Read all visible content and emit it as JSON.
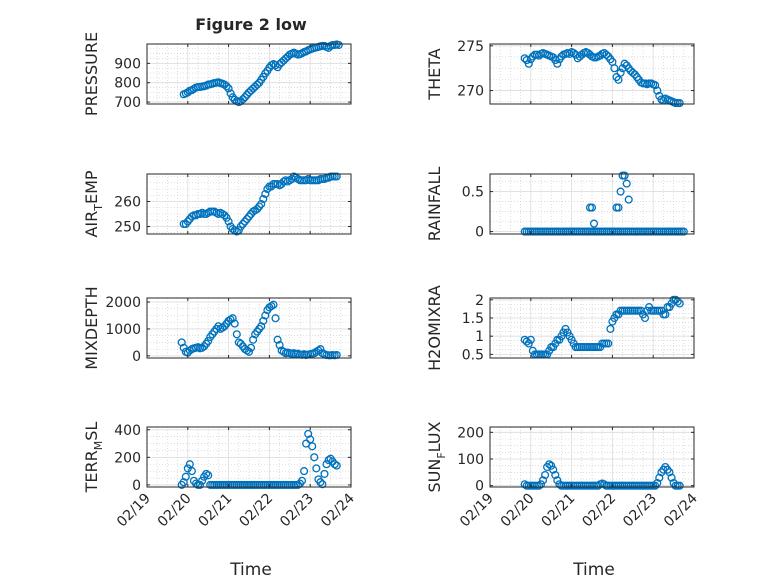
{
  "figure": {
    "title": "Figure 2 low"
  },
  "colors": {
    "marker": "#0072BD",
    "axis": "#262626",
    "grid": "#c8c8c8",
    "background": "#ffffff"
  },
  "shared_x": {
    "label": "Time",
    "ticks": [
      "02/19",
      "02/20",
      "02/21",
      "02/22",
      "02/23",
      "02/24"
    ],
    "range": [
      0,
      5
    ]
  },
  "chart_data": [
    {
      "type": "scatter",
      "id": "pressure",
      "ylabel": "PRESSURE",
      "title": "Figure 2 low",
      "xlim": [
        0,
        5
      ],
      "ylim": [
        690,
        1000
      ],
      "yticks": [
        700,
        800,
        900
      ],
      "grid": "on",
      "x": [
        0.9,
        0.95,
        1.0,
        1.05,
        1.1,
        1.15,
        1.2,
        1.25,
        1.3,
        1.35,
        1.4,
        1.45,
        1.5,
        1.55,
        1.6,
        1.65,
        1.7,
        1.75,
        1.8,
        1.85,
        1.9,
        1.95,
        2.0,
        2.05,
        2.1,
        2.15,
        2.2,
        2.25,
        2.3,
        2.35,
        2.4,
        2.45,
        2.5,
        2.55,
        2.6,
        2.65,
        2.7,
        2.75,
        2.8,
        2.85,
        2.9,
        2.95,
        3.0,
        3.05,
        3.1,
        3.15,
        3.2,
        3.25,
        3.3,
        3.35,
        3.4,
        3.45,
        3.5,
        3.55,
        3.6,
        3.65,
        3.7,
        3.75,
        3.8,
        3.85,
        3.9,
        3.95,
        4.0,
        4.05,
        4.1,
        4.15,
        4.2,
        4.25,
        4.3,
        4.35,
        4.4,
        4.45,
        4.5,
        4.55,
        4.6,
        4.65,
        4.7
      ],
      "y": [
        740,
        745,
        750,
        758,
        762,
        768,
        775,
        778,
        778,
        780,
        782,
        785,
        790,
        792,
        795,
        798,
        800,
        802,
        798,
        795,
        790,
        782,
        770,
        745,
        725,
        712,
        705,
        700,
        705,
        715,
        725,
        738,
        750,
        760,
        770,
        780,
        790,
        800,
        815,
        830,
        848,
        862,
        878,
        890,
        896,
        890,
        880,
        895,
        905,
        915,
        925,
        935,
        945,
        950,
        955,
        950,
        945,
        948,
        952,
        958,
        962,
        968,
        972,
        976,
        980,
        982,
        985,
        988,
        990,
        990,
        985,
        980,
        990,
        995,
        995,
        998,
        995
      ]
    },
    {
      "type": "scatter",
      "id": "theta",
      "ylabel": "THETA",
      "xlim": [
        0,
        5
      ],
      "ylim": [
        268.5,
        275.2
      ],
      "yticks": [
        270,
        275
      ],
      "grid": "on",
      "x": [
        0.85,
        0.9,
        0.95,
        1.0,
        1.05,
        1.1,
        1.15,
        1.2,
        1.25,
        1.3,
        1.35,
        1.4,
        1.45,
        1.5,
        1.55,
        1.6,
        1.65,
        1.7,
        1.75,
        1.8,
        1.85,
        1.9,
        1.95,
        2.0,
        2.05,
        2.1,
        2.15,
        2.2,
        2.25,
        2.3,
        2.35,
        2.4,
        2.45,
        2.5,
        2.55,
        2.6,
        2.65,
        2.7,
        2.75,
        2.8,
        2.85,
        2.9,
        2.95,
        3.0,
        3.05,
        3.1,
        3.15,
        3.2,
        3.25,
        3.3,
        3.35,
        3.4,
        3.45,
        3.5,
        3.55,
        3.6,
        3.65,
        3.7,
        3.75,
        3.8,
        3.85,
        3.9,
        3.95,
        4.0,
        4.05,
        4.1,
        4.15,
        4.2,
        4.25,
        4.3,
        4.35,
        4.4,
        4.45,
        4.5,
        4.55,
        4.6,
        4.65
      ],
      "y": [
        273.6,
        273.4,
        273.0,
        273.5,
        273.8,
        274.0,
        274.0,
        273.9,
        274.1,
        274.2,
        274.1,
        274.0,
        273.9,
        273.8,
        273.7,
        273.4,
        273.0,
        273.5,
        273.8,
        274.0,
        274.1,
        274.2,
        274.1,
        274.3,
        274.2,
        274.0,
        273.6,
        273.8,
        274.0,
        274.2,
        274.3,
        274.2,
        274.0,
        273.8,
        273.7,
        273.7,
        273.8,
        273.9,
        274.1,
        274.2,
        274.0,
        273.8,
        273.5,
        273.2,
        272.5,
        271.5,
        271.2,
        272.0,
        272.5,
        273.0,
        272.8,
        272.5,
        272.2,
        272.0,
        271.8,
        271.5,
        271.2,
        270.9,
        270.8,
        270.8,
        270.7,
        270.8,
        270.8,
        270.7,
        270.6,
        270.0,
        269.4,
        269.0,
        268.9,
        269.1,
        269.0,
        268.9,
        268.8,
        268.7,
        268.6,
        268.6,
        268.6
      ]
    },
    {
      "type": "scatter",
      "id": "air_temp",
      "ylabel": "AIR",
      "ylabel_sub": "T",
      "ylabel_rest": "EMP",
      "xlim": [
        0,
        5
      ],
      "ylim": [
        247,
        271
      ],
      "yticks": [
        250,
        260
      ],
      "grid": "on",
      "x": [
        0.9,
        0.95,
        1.0,
        1.05,
        1.1,
        1.15,
        1.2,
        1.25,
        1.3,
        1.35,
        1.4,
        1.45,
        1.5,
        1.55,
        1.6,
        1.65,
        1.7,
        1.75,
        1.8,
        1.85,
        1.9,
        1.95,
        2.0,
        2.05,
        2.1,
        2.15,
        2.2,
        2.25,
        2.3,
        2.35,
        2.4,
        2.45,
        2.5,
        2.55,
        2.6,
        2.65,
        2.7,
        2.75,
        2.8,
        2.85,
        2.9,
        2.95,
        3.0,
        3.05,
        3.1,
        3.15,
        3.2,
        3.25,
        3.3,
        3.35,
        3.4,
        3.45,
        3.5,
        3.55,
        3.6,
        3.65,
        3.7,
        3.75,
        3.8,
        3.85,
        3.9,
        3.95,
        4.0,
        4.05,
        4.1,
        4.15,
        4.2,
        4.25,
        4.3,
        4.35,
        4.4,
        4.45,
        4.5,
        4.55,
        4.6,
        4.65
      ],
      "y": [
        251,
        251,
        252,
        253,
        254,
        254.5,
        254.5,
        255,
        255,
        255.5,
        255,
        255,
        255.5,
        256,
        256,
        256,
        255.5,
        255,
        255.5,
        255,
        254.5,
        253.5,
        252,
        250,
        249,
        248.5,
        248,
        248.5,
        250,
        251,
        252,
        253,
        254,
        255,
        256,
        256.5,
        257,
        258,
        259,
        261,
        263,
        265,
        266,
        266,
        267,
        267,
        267,
        266.5,
        267,
        268,
        268.5,
        268,
        268.5,
        269,
        270,
        269.5,
        269,
        268.5,
        268.5,
        268.5,
        268.5,
        269,
        268.5,
        268.5,
        268.5,
        268.5,
        268.5,
        269,
        269,
        269,
        269.5,
        269.5,
        270,
        270,
        270,
        270
      ]
    },
    {
      "type": "scatter",
      "id": "rainfall",
      "ylabel": "RAINFALL",
      "xlim": [
        0,
        5
      ],
      "ylim": [
        -0.03,
        0.72
      ],
      "yticks": [
        0,
        0.5
      ],
      "grid": "on",
      "x": [
        0.85,
        0.9,
        0.95,
        1.0,
        1.05,
        1.1,
        1.15,
        1.2,
        1.25,
        1.3,
        1.35,
        1.4,
        1.45,
        1.5,
        1.55,
        1.6,
        1.65,
        1.7,
        1.75,
        1.8,
        1.85,
        1.9,
        1.95,
        2.0,
        2.05,
        2.1,
        2.15,
        2.2,
        2.25,
        2.3,
        2.35,
        2.4,
        2.45,
        2.5,
        2.55,
        2.6,
        2.65,
        2.7,
        2.75,
        2.8,
        2.85,
        2.9,
        2.95,
        3.0,
        3.05,
        3.1,
        3.15,
        3.2,
        3.25,
        3.3,
        3.35,
        3.4,
        3.45,
        3.5,
        3.55,
        3.6,
        3.65,
        3.7,
        3.75,
        3.8,
        3.85,
        3.9,
        3.95,
        4.0,
        4.05,
        4.1,
        4.15,
        4.2,
        4.25,
        4.3,
        4.35,
        4.4,
        4.45,
        4.5,
        4.55,
        4.6,
        4.65,
        4.7,
        4.75,
        2.45,
        2.5,
        2.55,
        3.1,
        3.15,
        3.2,
        3.25,
        3.3,
        3.35,
        3.4
      ],
      "y": [
        0,
        0,
        0,
        0,
        0,
        0,
        0,
        0,
        0,
        0,
        0,
        0,
        0,
        0,
        0,
        0,
        0,
        0,
        0,
        0,
        0,
        0,
        0,
        0,
        0,
        0,
        0,
        0,
        0,
        0,
        0,
        0,
        0,
        0,
        0,
        0,
        0,
        0,
        0,
        0,
        0,
        0,
        0,
        0,
        0,
        0,
        0,
        0,
        0,
        0,
        0,
        0,
        0,
        0,
        0,
        0,
        0,
        0,
        0,
        0,
        0,
        0,
        0,
        0,
        0,
        0,
        0,
        0,
        0,
        0,
        0,
        0,
        0,
        0,
        0,
        0,
        0,
        0,
        0,
        0.3,
        0.3,
        0.1,
        0.3,
        0.3,
        0.5,
        0.7,
        0.7,
        0.6,
        0.4
      ]
    },
    {
      "type": "scatter",
      "id": "mixdepth",
      "ylabel": "MIXDEPTH",
      "xlim": [
        0,
        5
      ],
      "ylim": [
        -80,
        2150
      ],
      "yticks": [
        0,
        1000,
        2000
      ],
      "grid": "on",
      "x": [
        0.85,
        0.9,
        0.95,
        1.0,
        1.05,
        1.1,
        1.15,
        1.2,
        1.25,
        1.3,
        1.35,
        1.4,
        1.45,
        1.5,
        1.55,
        1.6,
        1.65,
        1.7,
        1.75,
        1.8,
        1.85,
        1.9,
        1.95,
        2.0,
        2.05,
        2.1,
        2.15,
        2.2,
        2.25,
        2.3,
        2.35,
        2.4,
        2.45,
        2.5,
        2.55,
        2.6,
        2.65,
        2.7,
        2.75,
        2.8,
        2.85,
        2.9,
        2.95,
        3.0,
        3.05,
        3.1,
        3.15,
        3.2,
        3.25,
        3.3,
        3.35,
        3.4,
        3.45,
        3.5,
        3.55,
        3.6,
        3.65,
        3.7,
        3.75,
        3.8,
        3.85,
        3.9,
        3.95,
        4.0,
        4.05,
        4.1,
        4.15,
        4.2,
        4.25,
        4.3,
        4.35,
        4.4,
        4.45,
        4.5,
        4.55,
        4.6,
        4.65
      ],
      "y": [
        500,
        300,
        150,
        120,
        200,
        250,
        280,
        300,
        320,
        280,
        300,
        350,
        450,
        550,
        700,
        800,
        900,
        1000,
        1100,
        1000,
        1050,
        1100,
        1200,
        1300,
        1350,
        1400,
        1200,
        800,
        500,
        450,
        350,
        250,
        200,
        150,
        300,
        600,
        800,
        900,
        1000,
        1100,
        1300,
        1500,
        1700,
        1800,
        1850,
        1900,
        1400,
        600,
        400,
        200,
        150,
        100,
        120,
        100,
        80,
        100,
        60,
        80,
        50,
        40,
        60,
        30,
        50,
        60,
        80,
        100,
        150,
        200,
        250,
        100,
        60,
        30,
        20,
        20,
        30,
        20,
        30
      ]
    },
    {
      "type": "scatter",
      "id": "h2omixra",
      "ylabel": "H2OMIXRA",
      "xlim": [
        0,
        5
      ],
      "ylim": [
        0.4,
        2.05
      ],
      "yticks": [
        0.5,
        1,
        1.5,
        2
      ],
      "grid": "on",
      "x": [
        0.85,
        0.9,
        0.95,
        1.0,
        1.05,
        1.1,
        1.15,
        1.2,
        1.25,
        1.3,
        1.35,
        1.4,
        1.45,
        1.5,
        1.55,
        1.6,
        1.65,
        1.7,
        1.75,
        1.8,
        1.85,
        1.9,
        1.95,
        2.0,
        2.05,
        2.1,
        2.15,
        2.2,
        2.25,
        2.3,
        2.35,
        2.4,
        2.45,
        2.5,
        2.55,
        2.6,
        2.65,
        2.7,
        2.75,
        2.8,
        2.85,
        2.9,
        2.95,
        3.0,
        3.05,
        3.1,
        3.15,
        3.2,
        3.25,
        3.3,
        3.35,
        3.4,
        3.45,
        3.5,
        3.55,
        3.6,
        3.65,
        3.7,
        3.75,
        3.8,
        3.85,
        3.9,
        3.95,
        4.0,
        4.05,
        4.1,
        4.15,
        4.2,
        4.25,
        4.3,
        4.35,
        4.4,
        4.45,
        4.5,
        4.55,
        4.6,
        4.65
      ],
      "y": [
        0.9,
        0.85,
        0.8,
        0.9,
        0.6,
        0.5,
        0.5,
        0.5,
        0.5,
        0.5,
        0.5,
        0.5,
        0.6,
        0.7,
        0.7,
        0.8,
        0.9,
        0.9,
        1.0,
        1.1,
        1.2,
        1.1,
        1.0,
        0.9,
        0.8,
        0.7,
        0.7,
        0.7,
        0.7,
        0.7,
        0.7,
        0.7,
        0.7,
        0.7,
        0.7,
        0.7,
        0.7,
        0.7,
        0.8,
        0.8,
        0.8,
        0.8,
        1.2,
        1.4,
        1.5,
        1.6,
        1.6,
        1.7,
        1.7,
        1.7,
        1.7,
        1.7,
        1.7,
        1.7,
        1.7,
        1.7,
        1.7,
        1.7,
        1.6,
        1.5,
        1.7,
        1.8,
        1.7,
        1.7,
        1.7,
        1.7,
        1.7,
        1.7,
        1.6,
        1.6,
        1.8,
        1.8,
        1.9,
        2.0,
        2.0,
        1.95,
        1.9
      ]
    },
    {
      "type": "scatter",
      "id": "terr_msl",
      "ylabel": "TERR",
      "ylabel_sub": "M",
      "ylabel_rest": "SL",
      "xlim": [
        0,
        5
      ],
      "ylim": [
        -15,
        420
      ],
      "yticks": [
        0,
        200,
        400
      ],
      "grid": "on",
      "x": [
        0.85,
        0.9,
        0.95,
        1.0,
        1.05,
        1.1,
        1.15,
        1.2,
        1.25,
        1.3,
        1.35,
        1.4,
        1.45,
        1.5,
        1.55,
        1.6,
        1.65,
        1.7,
        1.75,
        1.8,
        1.85,
        1.9,
        1.95,
        2.0,
        2.05,
        2.1,
        2.15,
        2.2,
        2.25,
        2.3,
        2.35,
        2.4,
        2.45,
        2.5,
        2.55,
        2.6,
        2.65,
        2.7,
        2.75,
        2.8,
        2.85,
        2.9,
        2.95,
        3.0,
        3.05,
        3.1,
        3.15,
        3.2,
        3.25,
        3.3,
        3.35,
        3.4,
        3.45,
        3.5,
        3.55,
        3.6,
        3.65,
        3.7,
        3.75,
        3.8,
        3.85,
        3.9,
        3.95,
        4.0,
        4.05,
        4.1,
        4.15,
        4.2,
        4.25,
        4.3,
        4.35,
        4.4,
        4.45,
        4.5,
        4.55,
        4.6,
        4.65
      ],
      "y": [
        0,
        20,
        60,
        120,
        150,
        100,
        30,
        10,
        0,
        0,
        30,
        60,
        80,
        70,
        0,
        0,
        0,
        0,
        0,
        0,
        0,
        0,
        0,
        0,
        0,
        0,
        0,
        0,
        0,
        0,
        0,
        0,
        0,
        0,
        0,
        0,
        0,
        0,
        0,
        0,
        0,
        0,
        0,
        0,
        0,
        0,
        0,
        0,
        0,
        0,
        0,
        0,
        0,
        0,
        0,
        0,
        0,
        0,
        10,
        30,
        100,
        300,
        370,
        330,
        280,
        200,
        120,
        40,
        20,
        5,
        80,
        150,
        180,
        190,
        170,
        150,
        140
      ]
    },
    {
      "type": "scatter",
      "id": "sun_flux",
      "ylabel": "SUN",
      "ylabel_sub": "F",
      "ylabel_rest": "LUX",
      "xlim": [
        0,
        5
      ],
      "ylim": [
        -5,
        220
      ],
      "yticks": [
        0,
        100,
        200
      ],
      "grid": "on",
      "x": [
        0.85,
        0.9,
        0.95,
        1.0,
        1.05,
        1.1,
        1.15,
        1.2,
        1.25,
        1.3,
        1.35,
        1.4,
        1.45,
        1.5,
        1.55,
        1.6,
        1.65,
        1.7,
        1.75,
        1.8,
        1.85,
        1.9,
        1.95,
        2.0,
        2.05,
        2.1,
        2.15,
        2.2,
        2.25,
        2.3,
        2.35,
        2.4,
        2.45,
        2.5,
        2.55,
        2.6,
        2.65,
        2.7,
        2.75,
        2.8,
        2.85,
        2.9,
        2.95,
        3.0,
        3.05,
        3.1,
        3.15,
        3.2,
        3.25,
        3.3,
        3.35,
        3.4,
        3.45,
        3.5,
        3.55,
        3.6,
        3.65,
        3.7,
        3.75,
        3.8,
        3.85,
        3.9,
        3.95,
        4.0,
        4.05,
        4.1,
        4.15,
        4.2,
        4.25,
        4.3,
        4.35,
        4.4,
        4.45,
        4.5,
        4.55,
        4.6,
        4.65
      ],
      "y": [
        5,
        0,
        0,
        0,
        0,
        0,
        0,
        0,
        5,
        20,
        40,
        70,
        80,
        75,
        60,
        40,
        20,
        5,
        0,
        0,
        0,
        0,
        0,
        0,
        0,
        0,
        0,
        0,
        0,
        0,
        0,
        0,
        0,
        0,
        0,
        0,
        0,
        5,
        8,
        5,
        0,
        0,
        0,
        0,
        0,
        0,
        0,
        0,
        0,
        0,
        0,
        0,
        0,
        0,
        0,
        0,
        0,
        0,
        0,
        0,
        0,
        0,
        0,
        0,
        0,
        10,
        30,
        50,
        60,
        70,
        60,
        50,
        30,
        10,
        0,
        0,
        0
      ]
    }
  ]
}
